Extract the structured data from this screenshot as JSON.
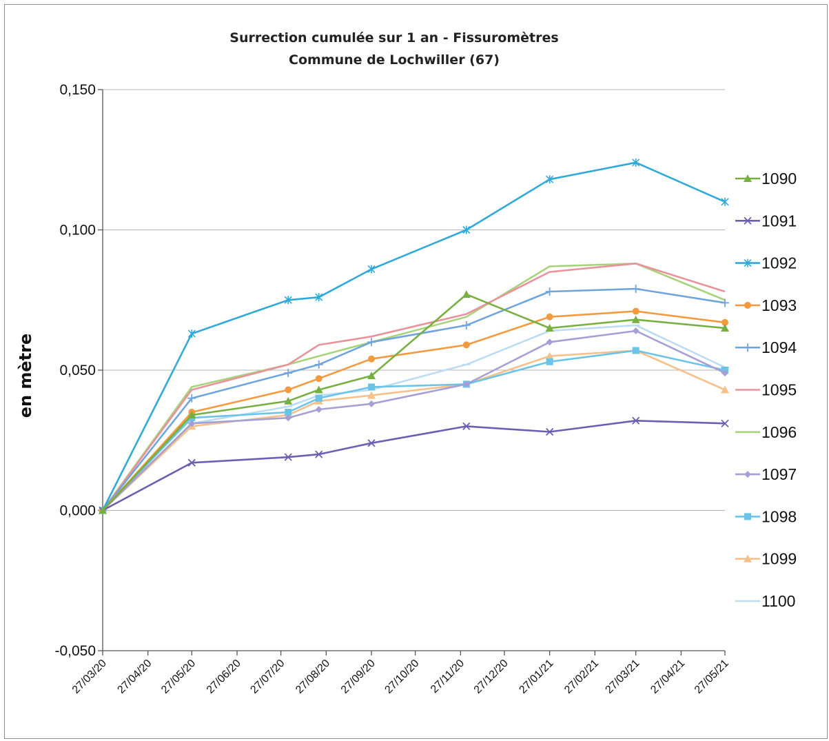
{
  "chart_data": {
    "type": "line",
    "title": [
      "Surrection cumulée sur 1 an - Fissuromètres",
      "Commune de Lochwiller (67)"
    ],
    "ylabel": "en mètre",
    "ylim": [
      -0.05,
      0.15
    ],
    "yticks": [
      -0.05,
      0.0,
      0.05,
      0.1,
      0.15
    ],
    "ytick_labels": [
      "-0,050",
      "0,000",
      "0,050",
      "0,100",
      "0,150"
    ],
    "x_start": "2020-03-27",
    "x_end": "2021-05-27",
    "xticks": [
      "2020-03-27",
      "2020-04-27",
      "2020-05-27",
      "2020-06-27",
      "2020-07-27",
      "2020-08-27",
      "2020-09-27",
      "2020-10-27",
      "2020-11-27",
      "2020-12-27",
      "2021-01-27",
      "2021-02-27",
      "2021-03-27",
      "2021-04-27",
      "2021-05-27"
    ],
    "xtick_labels": [
      "27/03/20",
      "27/04/20",
      "27/05/20",
      "27/06/20",
      "27/07/20",
      "27/08/20",
      "27/09/20",
      "27/10/20",
      "27/11/20",
      "27/12/20",
      "27/01/21",
      "27/02/21",
      "27/03/21",
      "27/04/21",
      "27/05/21"
    ],
    "grid": "horizontal",
    "legend": "right",
    "dates": [
      "2020-03-27",
      "2020-05-27",
      "2020-08-01",
      "2020-08-22",
      "2020-09-27",
      "2020-12-01",
      "2021-01-27",
      "2021-03-27",
      "2021-05-27"
    ],
    "series": [
      {
        "name": "1090",
        "color": "#77b041",
        "marker": "triangle",
        "values": [
          0,
          0.034,
          0.039,
          0.043,
          0.048,
          0.077,
          0.065,
          0.068,
          0.065
        ]
      },
      {
        "name": "1091",
        "color": "#6a5fb3",
        "marker": "x",
        "values": [
          0,
          0.017,
          0.019,
          0.02,
          0.024,
          0.03,
          0.028,
          0.032,
          0.031
        ]
      },
      {
        "name": "1092",
        "color": "#31a9d8",
        "marker": "star",
        "values": [
          0,
          0.063,
          0.075,
          0.076,
          0.086,
          0.1,
          0.118,
          0.124,
          0.11
        ]
      },
      {
        "name": "1093",
        "color": "#f39a3f",
        "marker": "circle",
        "values": [
          0,
          0.035,
          0.043,
          0.047,
          0.054,
          0.059,
          0.069,
          0.071,
          0.067
        ]
      },
      {
        "name": "1094",
        "color": "#6fa4dc",
        "marker": "plus",
        "values": [
          0,
          0.04,
          0.049,
          0.052,
          0.06,
          0.066,
          0.078,
          0.079,
          0.074
        ]
      },
      {
        "name": "1095",
        "color": "#e8929b",
        "marker": "none",
        "values": [
          0,
          0.043,
          0.052,
          0.059,
          0.062,
          0.07,
          0.085,
          0.088,
          0.078
        ]
      },
      {
        "name": "1096",
        "color": "#a8d27a",
        "marker": "none",
        "values": [
          0,
          0.044,
          0.052,
          0.055,
          0.06,
          0.069,
          0.087,
          0.088,
          0.075
        ]
      },
      {
        "name": "1097",
        "color": "#a59fd6",
        "marker": "diamond",
        "values": [
          0,
          0.031,
          0.033,
          0.036,
          0.038,
          0.045,
          0.06,
          0.064,
          0.049
        ]
      },
      {
        "name": "1098",
        "color": "#6cc3e8",
        "marker": "square",
        "values": [
          0,
          0.033,
          0.035,
          0.04,
          0.044,
          0.045,
          0.053,
          0.057,
          0.05
        ]
      },
      {
        "name": "1099",
        "color": "#f7c08a",
        "marker": "triangle",
        "values": [
          0,
          0.03,
          0.034,
          0.039,
          0.041,
          0.045,
          0.055,
          0.057,
          0.043
        ]
      },
      {
        "name": "1100",
        "color": "#bcdcf2",
        "marker": "dash",
        "values": [
          0,
          0.031,
          0.037,
          0.041,
          0.043,
          0.052,
          0.064,
          0.066,
          0.051
        ]
      }
    ]
  }
}
